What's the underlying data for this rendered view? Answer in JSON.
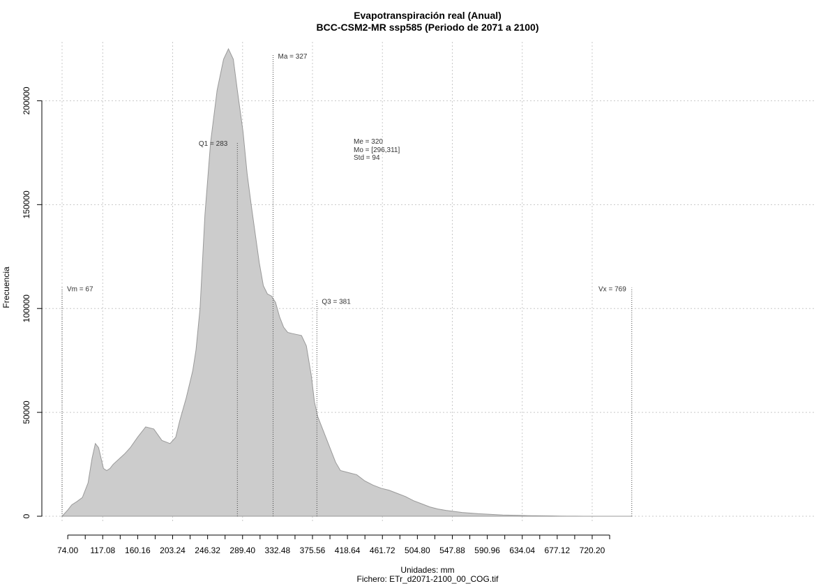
{
  "chart_data": {
    "type": "area",
    "title": "Evapotranspiración real (Anual)",
    "subtitle": "BCC-CSM2-MR ssp585 (Periodo de 2071 a 2100)",
    "xlabel": "Unidades: mm",
    "ylabel": "Frecuencia",
    "caption": "Fichero: ETr_d2071-2100_00_COG.tif",
    "xlim": [
      67,
      769
    ],
    "ylim": [
      0,
      225000
    ],
    "x_ticks": [
      "74.00",
      "117.08",
      "160.16",
      "203.24",
      "246.32",
      "289.40",
      "332.48",
      "375.56",
      "418.64",
      "461.72",
      "504.80",
      "547.88",
      "590.96",
      "634.04",
      "677.12",
      "720.20"
    ],
    "x_tick_values": [
      74.0,
      117.08,
      160.16,
      203.24,
      246.32,
      289.4,
      332.48,
      375.56,
      418.64,
      461.72,
      504.8,
      547.88,
      590.96,
      634.04,
      677.12,
      720.2
    ],
    "y_ticks": [
      0,
      50000,
      100000,
      150000,
      200000
    ],
    "y_tick_labels": [
      "0",
      "50000",
      "100000",
      "150000",
      "200000"
    ],
    "grid": true,
    "fill_color": "#cccccc",
    "line_color": "#999999",
    "x": [
      67,
      74,
      79,
      85,
      92,
      99,
      104,
      108,
      112,
      115,
      118,
      122,
      126,
      130,
      137,
      144,
      151,
      160,
      170,
      180,
      190,
      200,
      207,
      212,
      220,
      228,
      232,
      237,
      243,
      250,
      258,
      266,
      272,
      278,
      283,
      290,
      295,
      300,
      305,
      310,
      315,
      320,
      325,
      330,
      335,
      340,
      345,
      350,
      356,
      362,
      368,
      374,
      378,
      382,
      386,
      392,
      398,
      404,
      410,
      420,
      430,
      440,
      450,
      460,
      470,
      480,
      490,
      500,
      510,
      520,
      530,
      540,
      550,
      560,
      570,
      580,
      590,
      600,
      610,
      620,
      630,
      640,
      650,
      660,
      670,
      680,
      690,
      700,
      710,
      720,
      730,
      740,
      750,
      760,
      769
    ],
    "y": [
      0,
      3000,
      5500,
      7000,
      9000,
      16000,
      28000,
      35000,
      33000,
      28000,
      23000,
      22000,
      23000,
      25000,
      27500,
      30000,
      33000,
      38000,
      43000,
      42000,
      36500,
      35000,
      38000,
      46000,
      57000,
      70000,
      80000,
      100000,
      145000,
      180000,
      205000,
      220000,
      225000,
      220000,
      205000,
      185000,
      165000,
      150000,
      136000,
      122000,
      111000,
      107000,
      106000,
      103000,
      96000,
      91000,
      88500,
      88000,
      87500,
      87000,
      82000,
      68000,
      55000,
      48000,
      44000,
      38000,
      32000,
      26000,
      22000,
      21000,
      20000,
      17000,
      15000,
      13500,
      12500,
      11000,
      9500,
      7500,
      6000,
      4500,
      3500,
      2800,
      2300,
      1800,
      1500,
      1200,
      1000,
      800,
      600,
      500,
      400,
      300,
      250,
      200,
      150,
      100,
      60,
      30,
      0,
      0,
      0,
      0,
      0,
      0,
      0
    ],
    "markers": [
      {
        "label": "Vm = 67",
        "x": 67,
        "y_top": 110000
      },
      {
        "label": "Q1 = 283",
        "x": 283,
        "y_top": 180000
      },
      {
        "label": "Ma = 327",
        "x": 327,
        "y_top": 222000
      },
      {
        "label": "Q3 = 381",
        "x": 381,
        "y_top": 104000
      },
      {
        "label": "Vx = 769",
        "x": 769,
        "y_top": 110000
      }
    ],
    "stats": [
      "Me = 320",
      "Mo = [296,311]",
      "Std = 94"
    ]
  }
}
